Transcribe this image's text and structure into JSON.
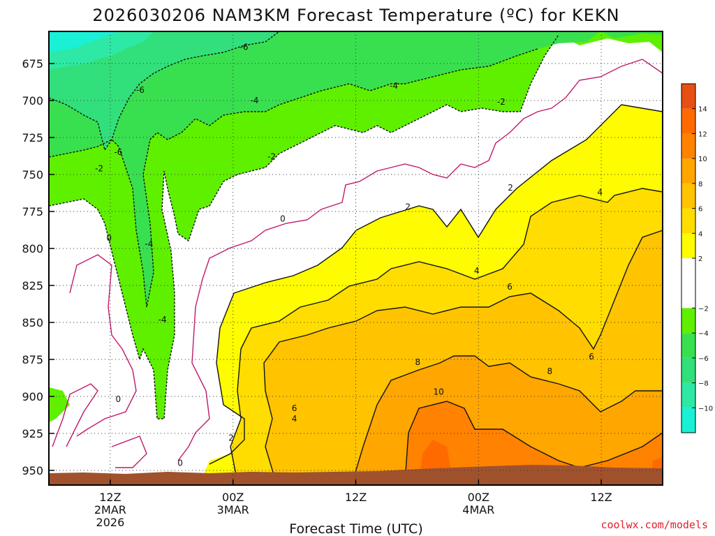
{
  "chart_data": {
    "type": "heatmap",
    "title": "2026030206 NAM3KM Forecast Temperature (ºC) for KEKN",
    "xlabel": "Forecast Time (UTC)",
    "ylabel": "",
    "credit": "coolwx.com/models",
    "y_axis": {
      "reversed": true,
      "ticks": [
        "675",
        "700",
        "725",
        "750",
        "775",
        "800",
        "825",
        "850",
        "875",
        "900",
        "925",
        "950"
      ]
    },
    "x_axis": {
      "ticks": [
        {
          "line1": "12Z",
          "line2": "2MAR",
          "line3": "2026"
        },
        {
          "line1": "00Z",
          "line2": "3MAR",
          "line3": ""
        },
        {
          "line1": "12Z",
          "line2": "",
          "line3": ""
        },
        {
          "line1": "00Z",
          "line2": "4MAR",
          "line3": ""
        },
        {
          "line1": "12Z",
          "line2": "",
          "line3": ""
        }
      ]
    },
    "grid": true,
    "colorbar": {
      "position": "right",
      "ticks": [
        "14",
        "12",
        "10",
        "8",
        "6",
        "4",
        "2",
        "−2",
        "−4",
        "−6",
        "−8",
        "−10"
      ],
      "bins": [
        {
          "lo": -12,
          "hi": -10,
          "color": "#19f0d6"
        },
        {
          "lo": -10,
          "hi": -8,
          "color": "#2ee8a6"
        },
        {
          "lo": -8,
          "hi": -6,
          "color": "#31e07a"
        },
        {
          "lo": -6,
          "hi": -4,
          "color": "#38e050"
        },
        {
          "lo": -4,
          "hi": -2,
          "color": "#5ff000"
        },
        {
          "lo": -2,
          "hi": 2,
          "color": "#ffffff"
        },
        {
          "lo": 2,
          "hi": 4,
          "color": "#fffb00"
        },
        {
          "lo": 4,
          "hi": 6,
          "color": "#ffdd00"
        },
        {
          "lo": 6,
          "hi": 8,
          "color": "#ffc300"
        },
        {
          "lo": 8,
          "hi": 10,
          "color": "#ffa600"
        },
        {
          "lo": 10,
          "hi": 12,
          "color": "#ff8200"
        },
        {
          "lo": 12,
          "hi": 14,
          "color": "#ff6a00"
        },
        {
          "lo": 14,
          "hi": 16,
          "color": "#e84f13"
        }
      ]
    },
    "contour_labels": [
      {
        "text": "-6",
        "t": 0.318,
        "p": 664
      },
      {
        "text": "-6",
        "t": 0.149,
        "p": 693
      },
      {
        "text": "-6",
        "t": 0.113,
        "p": 735
      },
      {
        "text": "-4",
        "t": 0.562,
        "p": 690
      },
      {
        "text": "-4",
        "t": 0.335,
        "p": 700
      },
      {
        "text": "-2",
        "t": 0.737,
        "p": 701
      },
      {
        "text": "-2",
        "t": 0.363,
        "p": 738
      },
      {
        "text": "-2",
        "t": 0.082,
        "p": 746
      },
      {
        "text": "0",
        "t": 0.381,
        "p": 780
      },
      {
        "text": "0",
        "t": 0.098,
        "p": 793
      },
      {
        "text": "0",
        "t": 0.113,
        "p": 902
      },
      {
        "text": "0",
        "t": 0.214,
        "p": 945
      },
      {
        "text": "-4",
        "t": 0.163,
        "p": 797
      },
      {
        "text": "-4",
        "t": 0.185,
        "p": 848
      },
      {
        "text": "2",
        "t": 0.585,
        "p": 772
      },
      {
        "text": "2",
        "t": 0.752,
        "p": 759
      },
      {
        "text": "2",
        "t": 0.297,
        "p": 928
      },
      {
        "text": "4",
        "t": 0.898,
        "p": 762
      },
      {
        "text": "4",
        "t": 0.697,
        "p": 815
      },
      {
        "text": "4",
        "t": 0.4,
        "p": 915
      },
      {
        "text": "6",
        "t": 0.751,
        "p": 826
      },
      {
        "text": "6",
        "t": 0.884,
        "p": 873
      },
      {
        "text": "6",
        "t": 0.4,
        "p": 908
      },
      {
        "text": "8",
        "t": 0.601,
        "p": 877
      },
      {
        "text": "8",
        "t": 0.816,
        "p": 883
      },
      {
        "text": "10",
        "t": 0.635,
        "p": 897
      }
    ]
  }
}
